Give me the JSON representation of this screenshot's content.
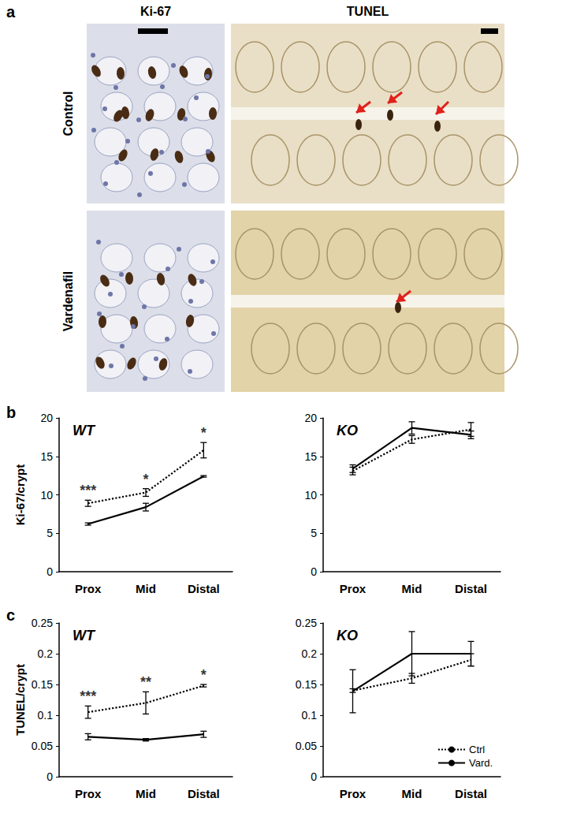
{
  "figure_labels": {
    "panels": [
      "a",
      "b",
      "c"
    ]
  },
  "images": {
    "columns": [
      "Ki-67",
      "TUNEL"
    ],
    "rows": [
      "Control",
      "Vardenafil"
    ]
  },
  "chart_data": [
    {
      "type": "line",
      "title": "WT",
      "y_label": "Ki-67/crypt",
      "categories": [
        "Prox",
        "Mid",
        "Distal"
      ],
      "ylim": [
        0,
        20
      ],
      "yticks": [
        0,
        5,
        10,
        15,
        20
      ],
      "grid": false,
      "series": [
        {
          "name": "Ctrl",
          "color": "#000000",
          "line_style": "dotted",
          "values": [
            8.9,
            10.3,
            15.8
          ],
          "errors": [
            0.4,
            0.5,
            1.0
          ]
        },
        {
          "name": "Vard.",
          "color": "#000000",
          "line_style": "solid",
          "values": [
            6.2,
            8.4,
            12.4
          ],
          "errors": [
            0.15,
            0.5,
            0.1
          ]
        }
      ],
      "significance": [
        "***",
        "*",
        "*"
      ]
    },
    {
      "type": "line",
      "title": "KO",
      "categories": [
        "Prox",
        "Mid",
        "Distal"
      ],
      "ylim": [
        0,
        20
      ],
      "yticks": [
        0,
        5,
        10,
        15,
        20
      ],
      "grid": false,
      "series": [
        {
          "name": "Ctrl",
          "color": "#000000",
          "line_style": "dotted",
          "values": [
            13.1,
            17.2,
            18.5
          ],
          "errors": [
            0.5,
            0.5,
            0.9
          ]
        },
        {
          "name": "Vard.",
          "color": "#000000",
          "line_style": "solid",
          "values": [
            13.4,
            18.7,
            17.8
          ],
          "errors": [
            0.5,
            0.8,
            0.5
          ]
        }
      ]
    },
    {
      "type": "line",
      "title": "WT",
      "y_label": "TUNEL/crypt",
      "categories": [
        "Prox",
        "Mid",
        "Distal"
      ],
      "ylim": [
        0,
        0.25
      ],
      "yticks": [
        0,
        0.05,
        0.1,
        0.15,
        0.2,
        0.25
      ],
      "grid": false,
      "series": [
        {
          "name": "Ctrl",
          "color": "#000000",
          "line_style": "dotted",
          "values": [
            0.105,
            0.12,
            0.148
          ],
          "errors": [
            0.01,
            0.018,
            0.002
          ]
        },
        {
          "name": "Vard.",
          "color": "#000000",
          "line_style": "solid",
          "values": [
            0.065,
            0.06,
            0.069
          ],
          "errors": [
            0.005,
            0.002,
            0.005
          ]
        }
      ],
      "significance": [
        "***",
        "**",
        "*"
      ]
    },
    {
      "type": "line",
      "title": "KO",
      "categories": [
        "Prox",
        "Mid",
        "Distal"
      ],
      "ylim": [
        0,
        0.25
      ],
      "yticks": [
        0,
        0.05,
        0.1,
        0.15,
        0.2,
        0.25
      ],
      "grid": false,
      "legend": "lower right",
      "series": [
        {
          "name": "Ctrl",
          "color": "#000000",
          "line_style": "dotted",
          "values": [
            0.14,
            0.16,
            0.19
          ],
          "errors": [
            0.003,
            0.008,
            0.01
          ]
        },
        {
          "name": "Vard.",
          "color": "#000000",
          "line_style": "solid",
          "values": [
            0.139,
            0.2,
            0.2
          ],
          "errors": [
            0.035,
            0.036,
            0.02
          ]
        }
      ]
    }
  ]
}
